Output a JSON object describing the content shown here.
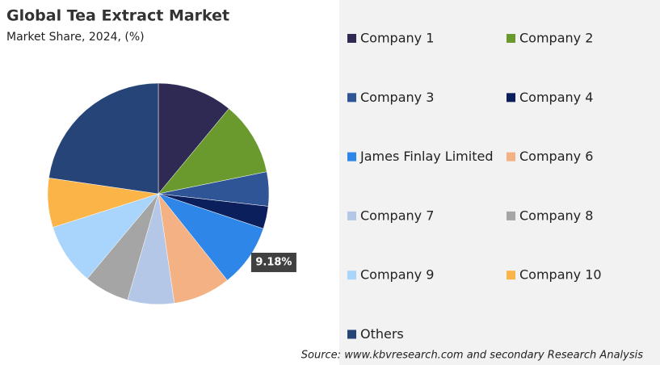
{
  "chart_data": {
    "type": "pie",
    "title": "Global Tea Extract Market",
    "subtitle": "Market Share, 2024, (%)",
    "source": "Source: www.kbvresearch.com and secondary Research Analysis",
    "categories": [
      "Company 1",
      "Company 2",
      "Company 3",
      "Company 4",
      "James Finlay Limited",
      "Company 6",
      "Company 7",
      "Company 8",
      "Company 9",
      "Company 10",
      "Others"
    ],
    "values": [
      11,
      10.8,
      5,
      3.3,
      9.18,
      8.4,
      6.8,
      6.6,
      9,
      7.2,
      22.7
    ],
    "value_labels": [
      null,
      null,
      null,
      null,
      "9.18%",
      null,
      null,
      null,
      null,
      null,
      null
    ],
    "colors": [
      "#2e2a54",
      "#6a9a2e",
      "#2f5597",
      "#0a1f5c",
      "#2e86e8",
      "#f4b183",
      "#b4c7e7",
      "#a5a5a5",
      "#a9d4fb",
      "#fbb447",
      "#264478"
    ],
    "legend": "right"
  }
}
